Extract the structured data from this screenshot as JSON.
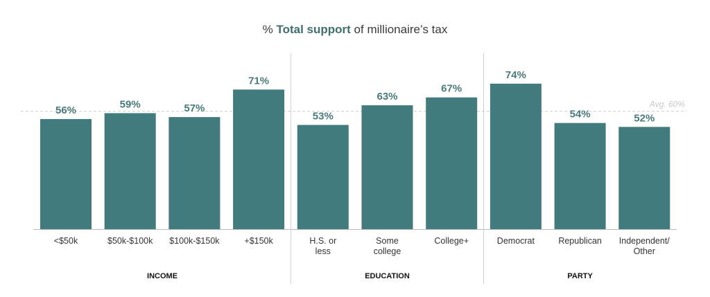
{
  "chart_data": {
    "type": "bar",
    "title_prefix": "% ",
    "title_bold": "Total support",
    "title_suffix": " of millionaire’s tax",
    "categories": [
      [
        "<$50k"
      ],
      [
        "$50k-$100k"
      ],
      [
        "$100k-$150k"
      ],
      [
        "+$150k"
      ],
      [
        "H.S. or",
        "less"
      ],
      [
        "Some",
        "college"
      ],
      [
        "College+"
      ],
      [
        "Democrat"
      ],
      [
        "Republican"
      ],
      [
        "Independent/",
        "Other"
      ]
    ],
    "values": [
      56,
      59,
      57,
      71,
      53,
      63,
      67,
      74,
      54,
      52
    ],
    "value_labels": [
      "56%",
      "59%",
      "57%",
      "71%",
      "53%",
      "63%",
      "67%",
      "74%",
      "54%",
      "52%"
    ],
    "groups": [
      {
        "label": "INCOME",
        "count": 4
      },
      {
        "label": "EDUCATION",
        "count": 3
      },
      {
        "label": "PARTY",
        "count": 3
      }
    ],
    "average": 60,
    "average_label": "Avg. 60%",
    "ylim": [
      0,
      80
    ],
    "bar_color": "#427b7e",
    "xlabel": "",
    "ylabel": ""
  }
}
